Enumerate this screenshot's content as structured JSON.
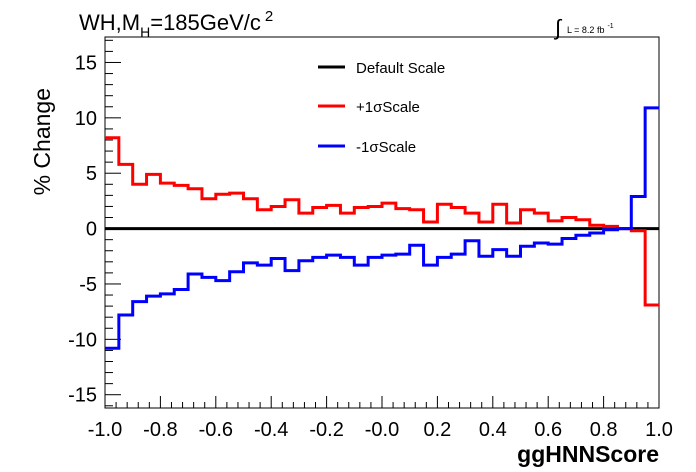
{
  "chart_data": {
    "type": "line",
    "style": "step-histogram",
    "title_main": "WH,M",
    "title_sub": "H",
    "title_rest": "=185GeV/c",
    "title_sup": "2",
    "lumi_symbol": "∫",
    "lumi_text": "L = 8.2 fb",
    "lumi_sup": "-1",
    "xlabel": "ggHNNScore",
    "ylabel": "% Change",
    "xlim": [
      -1.0,
      1.0
    ],
    "ylim": [
      -16.2,
      17.3
    ],
    "xticks": [
      -1.0,
      -0.8,
      -0.6,
      -0.4,
      -0.2,
      0.0,
      0.2,
      0.4,
      0.6,
      0.8,
      1.0
    ],
    "xtick_labels": [
      "-1.0",
      "-0.8",
      "-0.6",
      "-0.4",
      "-0.2",
      "-0.0",
      "0.2",
      "0.4",
      "0.6",
      "0.8",
      "1.0"
    ],
    "yticks": [
      -15,
      -10,
      -5,
      0,
      5,
      10,
      15
    ],
    "ytick_labels": [
      "-15",
      "-10",
      "-5",
      "0",
      "5",
      "10",
      "15"
    ],
    "bin_edges": [
      -1.0,
      -0.95,
      -0.9,
      -0.85,
      -0.8,
      -0.75,
      -0.7,
      -0.65,
      -0.6,
      -0.55,
      -0.5,
      -0.45,
      -0.4,
      -0.35,
      -0.3,
      -0.25,
      -0.2,
      -0.15,
      -0.1,
      -0.05,
      0.0,
      0.05,
      0.1,
      0.15,
      0.2,
      0.25,
      0.3,
      0.35,
      0.4,
      0.45,
      0.5,
      0.55,
      0.6,
      0.65,
      0.7,
      0.75,
      0.8,
      0.85,
      0.9,
      0.95,
      1.0
    ],
    "legend_position": "top-center",
    "grid": false,
    "series": [
      {
        "name": "Default Scale",
        "color": "#000000",
        "values": [
          0,
          0,
          0,
          0,
          0,
          0,
          0,
          0,
          0,
          0,
          0,
          0,
          0,
          0,
          0,
          0,
          0,
          0,
          0,
          0,
          0,
          0,
          0,
          0,
          0,
          0,
          0,
          0,
          0,
          0,
          0,
          0,
          0,
          0,
          0,
          0,
          0,
          0,
          0,
          0
        ]
      },
      {
        "name": "+1σScale",
        "color": "#ff0000",
        "values": [
          8.2,
          5.8,
          4.0,
          4.9,
          4.1,
          3.9,
          3.6,
          2.7,
          3.1,
          3.2,
          2.7,
          1.7,
          2.0,
          2.6,
          1.4,
          1.9,
          2.1,
          1.4,
          1.9,
          2.0,
          2.3,
          1.8,
          1.7,
          0.6,
          2.2,
          1.9,
          1.4,
          0.6,
          2.2,
          0.5,
          1.7,
          1.4,
          0.7,
          1.0,
          0.8,
          0.3,
          0.2,
          0.0,
          -0.2,
          -6.9
        ]
      },
      {
        "name": "-1σScale",
        "color": "#0000ff",
        "values": [
          -10.8,
          -7.8,
          -6.6,
          -6.1,
          -5.9,
          -5.5,
          -4.1,
          -4.4,
          -4.7,
          -3.9,
          -3.1,
          -3.3,
          -2.7,
          -3.8,
          -2.9,
          -2.6,
          -2.4,
          -2.6,
          -3.3,
          -2.6,
          -2.4,
          -2.3,
          -1.5,
          -3.3,
          -2.6,
          -2.3,
          -1.1,
          -2.5,
          -1.9,
          -2.5,
          -1.6,
          -1.3,
          -1.4,
          -0.9,
          -0.6,
          -0.4,
          -0.1,
          0.0,
          2.9,
          10.9
        ]
      }
    ]
  }
}
